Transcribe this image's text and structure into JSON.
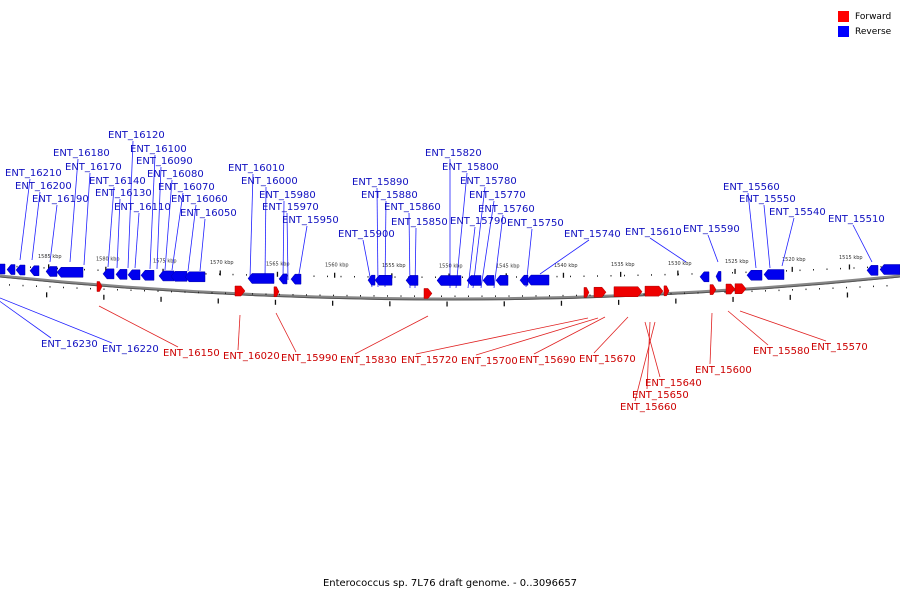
{
  "legend": {
    "forward_label": "Forward",
    "reverse_label": "Reverse",
    "forward_color": "#ff0000",
    "reverse_color": "#0000ff"
  },
  "caption": "Enterococcus sp. 7L76 draft genome. - 0..3096657",
  "ticks": [
    "1585 kbp",
    "1580 kbp",
    "1575 kbp",
    "1570 kbp",
    "1565 kbp",
    "1560 kbp",
    "1555 kbp",
    "1550 kbp",
    "1545 kbp",
    "1540 kbp",
    "1535 kbp",
    "1530 kbp",
    "1525 kbp",
    "1520 kbp",
    "1515 kbp"
  ],
  "reverse_labels": [
    "ENT_16210",
    "ENT_16200",
    "ENT_16190",
    "ENT_16180",
    "ENT_16170",
    "ENT_16140",
    "ENT_16130",
    "ENT_16120",
    "ENT_16110",
    "ENT_16100",
    "ENT_16090",
    "ENT_16080",
    "ENT_16070",
    "ENT_16060",
    "ENT_16050",
    "ENT_16010",
    "ENT_16000",
    "ENT_15980",
    "ENT_15970",
    "ENT_15950",
    "ENT_15900",
    "ENT_15890",
    "ENT_15880",
    "ENT_15860",
    "ENT_15850",
    "ENT_15820",
    "ENT_15800",
    "ENT_15780",
    "ENT_15770",
    "ENT_15760",
    "ENT_15790",
    "ENT_15750",
    "ENT_15740",
    "ENT_15610",
    "ENT_15590",
    "ENT_15560",
    "ENT_15550",
    "ENT_15540",
    "ENT_15510",
    "ENT_16230",
    "ENT_16220"
  ],
  "forward_labels": [
    "ENT_16150",
    "ENT_16020",
    "ENT_15990",
    "ENT_15830",
    "ENT_15720",
    "ENT_15700",
    "ENT_15690",
    "ENT_15670",
    "ENT_15640",
    "ENT_15650",
    "ENT_15660",
    "ENT_15600",
    "ENT_15580",
    "ENT_15570"
  ]
}
